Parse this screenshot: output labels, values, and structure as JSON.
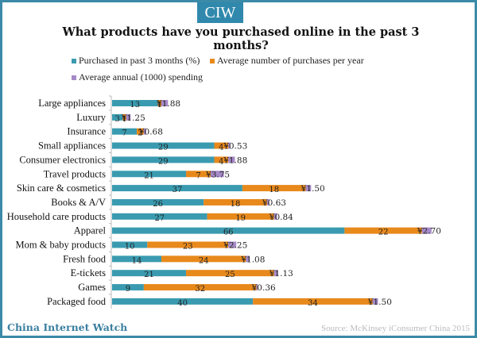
{
  "badge": "CIW",
  "brand": "China Internet Watch",
  "source": "Source: McKinsey iConsumer China 2015",
  "chart_data": {
    "type": "bar",
    "orientation": "horizontal",
    "stacked": true,
    "title": "What products have you purchased online in the past 3 months?",
    "xlabel": "",
    "ylabel": "",
    "grid": false,
    "legend_position": "top",
    "categories": [
      "Large appliances",
      "Luxury",
      "Insurance",
      "Small appliances",
      "Consumer electronics",
      "Travel products",
      "Skin care & cosmetics",
      "Books & A/V",
      "Household care products",
      "Apparel",
      "Mom & baby products",
      "Fresh food",
      "E-tickets",
      "Games",
      "Packaged food"
    ],
    "series": [
      {
        "name": "Purchased in past 3 months (%)",
        "color": "#3a9bb0",
        "values": [
          13,
          3,
          7,
          29,
          29,
          21,
          37,
          26,
          27,
          66,
          10,
          14,
          21,
          9,
          40
        ]
      },
      {
        "name": "Average number of purchases per year",
        "color": "#e8891c",
        "values": [
          1,
          1,
          2,
          4,
          4,
          7,
          18,
          18,
          19,
          22,
          23,
          24,
          25,
          32,
          34
        ]
      },
      {
        "name": "Average annual (1000) spending",
        "color": "#a68ac8",
        "values": [
          1.88,
          1.25,
          0.68,
          0.53,
          1.88,
          3.75,
          1.5,
          0.63,
          0.84,
          2.7,
          2.25,
          1.08,
          1.13,
          0.36,
          1.5
        ]
      }
    ],
    "spending_labels": [
      "¥1.88",
      "¥1.25",
      "¥0.68",
      "¥0.53",
      "¥1.88",
      "¥3.75",
      "¥1.50",
      "¥0.63",
      "¥0.84",
      "¥2.70",
      "¥2.25",
      "¥1.08",
      "¥1.13",
      "¥0.36",
      "¥1.50"
    ],
    "xlim": [
      0,
      105
    ]
  }
}
